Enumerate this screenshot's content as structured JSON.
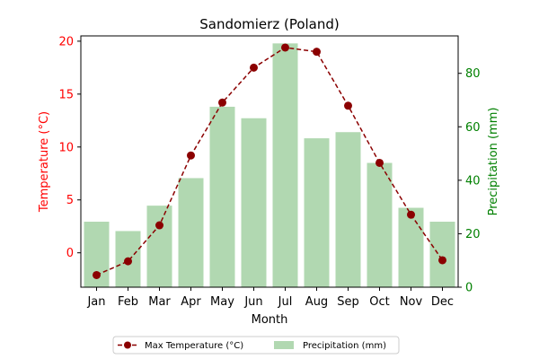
{
  "chart_data": {
    "type": "bar+line",
    "title": "Sandomierz (Poland)",
    "xlabel": "Month",
    "ylabel_left": "Temperature (°C)",
    "ylabel_right": "Precipitation (mm)",
    "categories": [
      "Jan",
      "Feb",
      "Mar",
      "Apr",
      "May",
      "Jun",
      "Jul",
      "Aug",
      "Sep",
      "Oct",
      "Nov",
      "Dec"
    ],
    "series": [
      {
        "name": "Max Temperature (°C)",
        "type": "line",
        "axis": "left",
        "color": "#8b0000",
        "values": [
          -2.1,
          -0.8,
          2.6,
          9.2,
          14.2,
          17.5,
          19.4,
          19.0,
          13.9,
          8.5,
          3.6,
          -0.7
        ]
      },
      {
        "name": "Precipitation (mm)",
        "type": "bar",
        "axis": "right",
        "color": "#b1d8b1",
        "values": [
          24.5,
          21.0,
          30.5,
          40.8,
          67.5,
          63.2,
          91.2,
          55.7,
          58.0,
          46.5,
          29.7,
          24.5
        ]
      }
    ],
    "ylim_left": [
      -3.25,
      20.5
    ],
    "ylim_right": [
      0,
      94
    ],
    "yticks_left": [
      "0",
      "5",
      "10",
      "15",
      "20"
    ],
    "yticks_right": [
      "0",
      "20",
      "40",
      "60",
      "80"
    ],
    "left_axis_color": "#ff0000",
    "right_axis_color": "#008000",
    "legend_position": "bottom-center",
    "grid": false
  }
}
